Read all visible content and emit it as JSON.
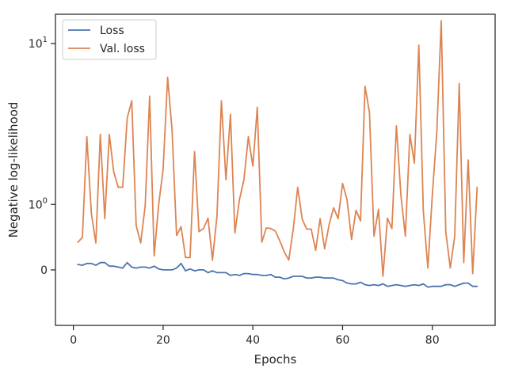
{
  "chart_data": {
    "type": "line",
    "title": "",
    "xlabel": "Epochs",
    "ylabel": "Negative log-likelihood",
    "yscale": "symlog",
    "xlim": [
      -4,
      94
    ],
    "ylim": [
      -0.8,
      14
    ],
    "xticks": [
      0,
      20,
      40,
      60,
      80
    ],
    "xtick_labels": [
      "0",
      "20",
      "40",
      "60",
      "80"
    ],
    "yticks": [
      0,
      1,
      10
    ],
    "ytick_labels": [
      "0",
      "10^0",
      "10^1"
    ],
    "grid": false,
    "legend_position": "top-left",
    "series": [
      {
        "name": "Loss",
        "color": "#4c72b0",
        "x": [
          1,
          2,
          3,
          4,
          5,
          6,
          7,
          8,
          9,
          10,
          11,
          12,
          13,
          14,
          15,
          16,
          17,
          18,
          19,
          20,
          21,
          22,
          23,
          24,
          25,
          26,
          27,
          28,
          29,
          30,
          31,
          32,
          33,
          34,
          35,
          36,
          37,
          38,
          39,
          40,
          41,
          42,
          43,
          44,
          45,
          46,
          47,
          48,
          49,
          50,
          51,
          52,
          53,
          54,
          55,
          56,
          57,
          58,
          59,
          60,
          61,
          62,
          63,
          64,
          65,
          66,
          67,
          68,
          69,
          70,
          71,
          72,
          73,
          74,
          75,
          76,
          77,
          78,
          79,
          80,
          81,
          82,
          83,
          84,
          85,
          86,
          87,
          88,
          89,
          90
        ],
        "values": [
          0.06,
          0.05,
          0.07,
          0.07,
          0.05,
          0.08,
          0.08,
          0.04,
          0.04,
          0.03,
          0.02,
          0.08,
          0.03,
          0.02,
          0.03,
          0.03,
          0.02,
          0.04,
          0.01,
          0.0,
          0.0,
          0.0,
          0.02,
          0.07,
          -0.01,
          0.01,
          -0.01,
          0.0,
          0.0,
          -0.03,
          -0.01,
          -0.03,
          -0.03,
          -0.03,
          -0.06,
          -0.05,
          -0.06,
          -0.04,
          -0.04,
          -0.05,
          -0.05,
          -0.06,
          -0.06,
          -0.05,
          -0.08,
          -0.08,
          -0.1,
          -0.09,
          -0.07,
          -0.07,
          -0.07,
          -0.09,
          -0.09,
          -0.08,
          -0.08,
          -0.09,
          -0.09,
          -0.09,
          -0.11,
          -0.12,
          -0.15,
          -0.16,
          -0.16,
          -0.14,
          -0.17,
          -0.18,
          -0.17,
          -0.18,
          -0.16,
          -0.19,
          -0.18,
          -0.17,
          -0.18,
          -0.19,
          -0.18,
          -0.17,
          -0.18,
          -0.16,
          -0.2,
          -0.19,
          -0.19,
          -0.19,
          -0.17,
          -0.17,
          -0.19,
          -0.17,
          -0.15,
          -0.15,
          -0.19,
          -0.19
        ]
      },
      {
        "name": "Val. loss",
        "color": "#dd8452",
        "x": [
          1,
          2,
          3,
          4,
          5,
          6,
          7,
          8,
          9,
          10,
          11,
          12,
          13,
          14,
          15,
          16,
          17,
          18,
          19,
          20,
          21,
          22,
          23,
          24,
          25,
          26,
          27,
          28,
          29,
          30,
          31,
          32,
          33,
          34,
          35,
          36,
          37,
          38,
          39,
          40,
          41,
          42,
          43,
          44,
          45,
          46,
          47,
          48,
          49,
          50,
          51,
          52,
          53,
          54,
          55,
          56,
          57,
          58,
          59,
          60,
          61,
          62,
          63,
          64,
          65,
          66,
          67,
          68,
          69,
          70,
          71,
          72,
          73,
          74,
          75,
          76,
          77,
          78,
          79,
          80,
          81,
          82,
          83,
          84,
          85,
          86,
          87,
          88,
          89,
          90
        ],
        "values": [
          0.34,
          0.41,
          3.1,
          0.82,
          0.33,
          3.2,
          0.72,
          3.2,
          1.82,
          1.4,
          1.4,
          4.0,
          5.0,
          0.6,
          0.33,
          0.98,
          5.3,
          0.16,
          1.0,
          1.9,
          6.7,
          3.4,
          0.44,
          0.58,
          0.14,
          0.14,
          2.5,
          0.5,
          0.55,
          0.73,
          0.11,
          0.77,
          5.0,
          1.6,
          4.2,
          0.48,
          1.1,
          1.6,
          3.1,
          2.0,
          4.6,
          0.34,
          0.56,
          0.55,
          0.51,
          0.36,
          0.21,
          0.11,
          0.54,
          1.4,
          0.71,
          0.54,
          0.54,
          0.23,
          0.72,
          0.25,
          0.62,
          0.93,
          0.72,
          1.5,
          1.1,
          0.38,
          0.88,
          0.68,
          6.0,
          4.3,
          0.43,
          0.9,
          -0.07,
          0.73,
          0.55,
          3.6,
          1.2,
          0.43,
          3.2,
          2.1,
          9.8,
          0.86,
          0.02,
          1.2,
          3.3,
          13.0,
          0.5,
          0.02,
          0.43,
          6.2,
          0.08,
          2.2,
          -0.04,
          1.4
        ]
      }
    ]
  }
}
